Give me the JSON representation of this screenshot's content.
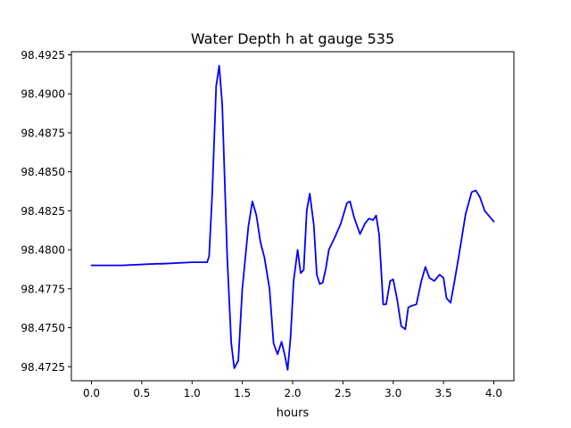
{
  "chart_data": {
    "type": "line",
    "title": "Water Depth h at gauge 535",
    "xlabel": "hours",
    "ylabel": "",
    "xlim": [
      -0.2,
      4.2
    ],
    "ylim": [
      98.4716,
      98.4927
    ],
    "xticks": [
      0.0,
      0.5,
      1.0,
      1.5,
      2.0,
      2.5,
      3.0,
      3.5,
      4.0
    ],
    "xtick_labels": [
      "0.0",
      "0.5",
      "1.0",
      "1.5",
      "2.0",
      "2.5",
      "3.0",
      "3.5",
      "4.0"
    ],
    "yticks": [
      98.4725,
      98.475,
      98.4775,
      98.48,
      98.4825,
      98.485,
      98.4875,
      98.49,
      98.4925
    ],
    "ytick_labels": [
      "98.4725",
      "98.4750",
      "98.4775",
      "98.4800",
      "98.4825",
      "98.4850",
      "98.4875",
      "98.4900",
      "98.4925"
    ],
    "grid": false,
    "series": [
      {
        "color": "#0000ff",
        "x": [
          0.0,
          0.3,
          0.65,
          0.7,
          1.0,
          1.15,
          1.17,
          1.2,
          1.24,
          1.27,
          1.3,
          1.35,
          1.39,
          1.42,
          1.46,
          1.5,
          1.56,
          1.6,
          1.64,
          1.68,
          1.72,
          1.77,
          1.81,
          1.85,
          1.89,
          1.92,
          1.95,
          1.98,
          2.01,
          2.05,
          2.08,
          2.11,
          2.14,
          2.17,
          2.21,
          2.24,
          2.27,
          2.3,
          2.33,
          2.36,
          2.42,
          2.48,
          2.54,
          2.57,
          2.61,
          2.67,
          2.72,
          2.76,
          2.8,
          2.83,
          2.86,
          2.9,
          2.93,
          2.97,
          3.0,
          3.04,
          3.08,
          3.12,
          3.15,
          3.18,
          3.23,
          3.28,
          3.32,
          3.36,
          3.41,
          3.46,
          3.5,
          3.53,
          3.57,
          3.61,
          3.65,
          3.72,
          3.78,
          3.82,
          3.86,
          3.91,
          4.0
        ],
        "y": [
          98.479,
          98.479,
          98.4791,
          98.4791,
          98.4792,
          98.4792,
          98.4796,
          98.4835,
          98.4905,
          98.4918,
          98.4893,
          98.4795,
          98.474,
          98.4724,
          98.4729,
          98.4775,
          98.4815,
          98.4831,
          98.4822,
          98.4805,
          98.4795,
          98.4775,
          98.474,
          98.4733,
          98.4741,
          98.4733,
          98.4723,
          98.4744,
          98.478,
          98.48,
          98.4785,
          98.4787,
          98.4825,
          98.4836,
          98.4816,
          98.4784,
          98.4778,
          98.4779,
          98.4788,
          98.48,
          98.4808,
          98.4817,
          98.483,
          98.4831,
          98.4821,
          98.481,
          98.4817,
          98.482,
          98.4819,
          98.4822,
          98.481,
          98.4765,
          98.4765,
          98.478,
          98.4781,
          98.4768,
          98.4751,
          98.4749,
          98.4763,
          98.4764,
          98.4765,
          98.478,
          98.4789,
          98.4782,
          98.478,
          98.4784,
          98.4782,
          98.4769,
          98.4766,
          98.478,
          98.4795,
          98.4823,
          98.4837,
          98.4838,
          98.4834,
          98.4825,
          98.4818
        ]
      }
    ]
  }
}
